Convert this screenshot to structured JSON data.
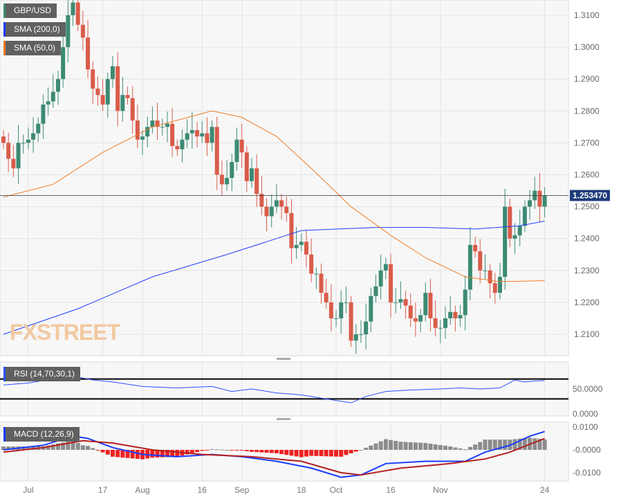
{
  "chart_data": {
    "type": "candlestick",
    "title": "GBP/USD",
    "last_price_label": "1.253470",
    "colors": {
      "up": "#3c8a74",
      "down": "#d95c4a",
      "sma200": "#1d3cff",
      "sma50": "#f07a22",
      "rsi": "#2a50ff",
      "macd": "#1a3cff",
      "signal": "#b51f1f",
      "hist_pos": "#8c8c8c",
      "hist_neg": "#ee2222"
    },
    "legend": [
      {
        "label": "GBP/USD",
        "color": "#3c8a74"
      },
      {
        "label": "SMA (200,0)",
        "color": "#1d3cff"
      },
      {
        "label": "SMA (50,0)",
        "color": "#f07a22"
      }
    ],
    "y_ticks": [
      "1.3100",
      "1.3000",
      "1.2900",
      "1.2800",
      "1.2700",
      "1.2600",
      "1.2500",
      "1.2400",
      "1.2300",
      "1.2200",
      "1.2100"
    ],
    "y_tick_values": [
      1.31,
      1.3,
      1.29,
      1.28,
      1.27,
      1.26,
      1.25,
      1.24,
      1.23,
      1.22,
      1.21
    ],
    "x_ticks": [
      "Jul",
      "17",
      "Aug",
      "16",
      "Sep",
      "18",
      "Oct",
      "16",
      "Nov",
      "24"
    ],
    "x_tick_index": [
      5,
      20,
      28,
      40,
      48,
      60,
      67,
      78,
      88,
      109
    ],
    "first_open": 1.272,
    "closes": [
      1.27,
      1.265,
      1.262,
      1.27,
      1.27,
      1.271,
      1.273,
      1.276,
      1.282,
      1.283,
      1.286,
      1.29,
      1.3,
      1.31,
      1.314,
      1.307,
      1.303,
      1.293,
      1.287,
      1.285,
      1.282,
      1.29,
      1.294,
      1.28,
      1.285,
      1.284,
      1.277,
      1.271,
      1.272,
      1.275,
      1.277,
      1.275,
      1.275,
      1.276,
      1.269,
      1.268,
      1.271,
      1.273,
      1.274,
      1.272,
      1.273,
      1.27,
      1.275,
      1.26,
      1.257,
      1.259,
      1.264,
      1.271,
      1.267,
      1.258,
      1.262,
      1.254,
      1.25,
      1.247,
      1.25,
      1.252,
      1.25,
      1.248,
      1.237,
      1.238,
      1.239,
      1.235,
      1.229,
      1.229,
      1.223,
      1.22,
      1.215,
      1.215,
      1.22,
      1.22,
      1.208,
      1.21,
      1.21,
      1.214,
      1.222,
      1.225,
      1.23,
      1.232,
      1.22,
      1.22,
      1.221,
      1.219,
      1.215,
      1.214,
      1.216,
      1.223,
      1.215,
      1.212,
      1.212,
      1.215,
      1.217,
      1.215,
      1.216,
      1.224,
      1.238,
      1.236,
      1.23,
      1.23,
      1.226,
      1.223,
      1.228,
      1.25,
      1.24,
      1.241,
      1.244,
      1.25,
      1.252,
      1.255,
      1.25,
      1.2535
    ],
    "sma200": [
      [
        0,
        1.21
      ],
      [
        15,
        1.218
      ],
      [
        30,
        1.228
      ],
      [
        45,
        1.235
      ],
      [
        55,
        1.24
      ],
      [
        60,
        1.2425
      ],
      [
        75,
        1.2435
      ],
      [
        85,
        1.2435
      ],
      [
        95,
        1.243
      ],
      [
        104,
        1.244
      ],
      [
        109,
        1.2455
      ]
    ],
    "sma50": [
      [
        0,
        1.253
      ],
      [
        10,
        1.257
      ],
      [
        20,
        1.267
      ],
      [
        30,
        1.275
      ],
      [
        42,
        1.28
      ],
      [
        48,
        1.278
      ],
      [
        55,
        1.272
      ],
      [
        62,
        1.262
      ],
      [
        70,
        1.25
      ],
      [
        78,
        1.241
      ],
      [
        85,
        1.234
      ],
      [
        93,
        1.228
      ],
      [
        100,
        1.2265
      ],
      [
        109,
        1.2268
      ]
    ],
    "rsi": {
      "label": "RSI (14,70,30,1)",
      "levels": [
        70,
        30
      ],
      "ticks": [
        "50.0000",
        "0.0000"
      ],
      "tick_values": [
        50,
        0
      ],
      "values": [
        [
          0,
          58
        ],
        [
          5,
          62
        ],
        [
          10,
          70
        ],
        [
          14,
          76
        ],
        [
          18,
          68
        ],
        [
          22,
          64
        ],
        [
          28,
          55
        ],
        [
          35,
          52
        ],
        [
          42,
          55
        ],
        [
          46,
          45
        ],
        [
          50,
          50
        ],
        [
          55,
          42
        ],
        [
          60,
          38
        ],
        [
          65,
          30
        ],
        [
          70,
          22
        ],
        [
          73,
          35
        ],
        [
          77,
          45
        ],
        [
          82,
          48
        ],
        [
          88,
          50
        ],
        [
          92,
          52
        ],
        [
          96,
          50
        ],
        [
          100,
          52
        ],
        [
          103,
          68
        ],
        [
          105,
          64
        ],
        [
          107,
          66
        ],
        [
          109,
          67
        ]
      ]
    },
    "macd": {
      "label": "MACD (12,26,9)",
      "ticks": [
        "0.0100",
        "-0.0000",
        "-0.0100"
      ],
      "tick_values": [
        0.01,
        0,
        -0.01
      ],
      "macd": [
        [
          0,
          0
        ],
        [
          8,
          0.002
        ],
        [
          14,
          0.006
        ],
        [
          17,
          0.005
        ],
        [
          22,
          0.001
        ],
        [
          28,
          -0.002
        ],
        [
          35,
          -0.003
        ],
        [
          42,
          -0.002
        ],
        [
          48,
          -0.003
        ],
        [
          55,
          -0.005
        ],
        [
          62,
          -0.008
        ],
        [
          68,
          -0.012
        ],
        [
          72,
          -0.011
        ],
        [
          77,
          -0.006
        ],
        [
          85,
          -0.005
        ],
        [
          93,
          -0.005
        ],
        [
          97,
          -0.001
        ],
        [
          102,
          0.002
        ],
        [
          106,
          0.006
        ],
        [
          109,
          0.008
        ]
      ],
      "signal": [
        [
          0,
          -0.001
        ],
        [
          8,
          0.001
        ],
        [
          16,
          0.004
        ],
        [
          22,
          0.003
        ],
        [
          30,
          0.0
        ],
        [
          40,
          -0.002
        ],
        [
          50,
          -0.003
        ],
        [
          60,
          -0.005
        ],
        [
          68,
          -0.01
        ],
        [
          72,
          -0.011
        ],
        [
          80,
          -0.008
        ],
        [
          90,
          -0.006
        ],
        [
          97,
          -0.004
        ],
        [
          102,
          -0.001
        ],
        [
          109,
          0.005
        ]
      ]
    }
  }
}
